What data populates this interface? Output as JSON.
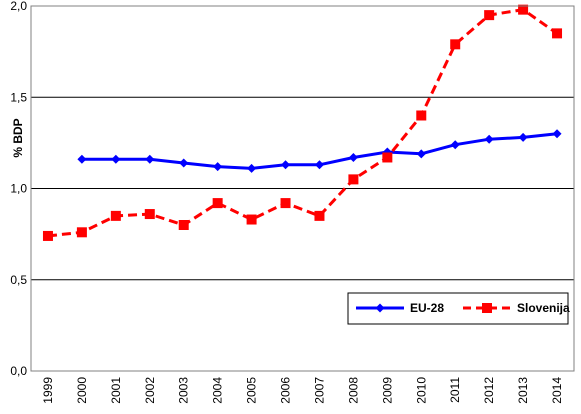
{
  "chart_data": {
    "type": "line",
    "xlabel": "",
    "ylabel": "% BDP",
    "categories": [
      "1999",
      "2000",
      "2001",
      "2002",
      "2003",
      "2004",
      "2005",
      "2006",
      "2007",
      "2008",
      "2009",
      "2010",
      "2011",
      "2012",
      "2013",
      "2014"
    ],
    "ylim": [
      0.0,
      2.0
    ],
    "yticks": [
      "0,0",
      "0,5",
      "1,0",
      "1,5",
      "2,0"
    ],
    "grid": true,
    "legend_position": "bottom-right",
    "series": [
      {
        "name": "EU-28",
        "color": "#0000ff",
        "style": "solid",
        "marker": "diamond",
        "values": [
          null,
          1.16,
          1.16,
          1.16,
          1.14,
          1.12,
          1.11,
          1.13,
          1.13,
          1.17,
          1.2,
          1.19,
          1.24,
          1.27,
          1.28,
          1.3
        ]
      },
      {
        "name": "Slovenija",
        "color": "#ff0000",
        "style": "dashed",
        "marker": "square",
        "values": [
          0.74,
          0.76,
          0.85,
          0.86,
          0.8,
          0.92,
          0.83,
          0.92,
          0.85,
          1.05,
          1.17,
          1.4,
          1.79,
          1.95,
          1.98,
          1.85
        ]
      }
    ]
  }
}
